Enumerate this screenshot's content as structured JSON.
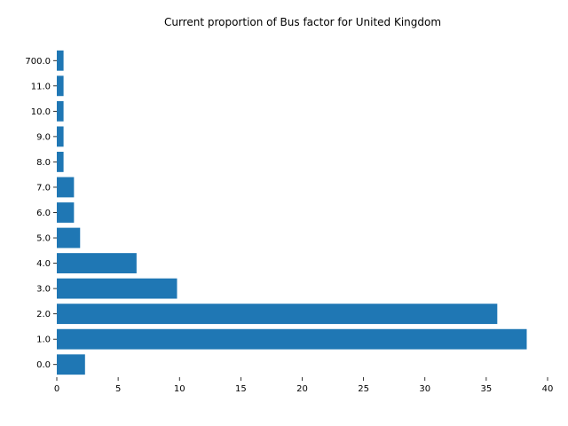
{
  "chart_data": {
    "type": "bar",
    "orientation": "horizontal",
    "title": "Current proportion of Bus factor for United Kingdom",
    "xlabel": "",
    "ylabel": "",
    "categories": [
      "0.0",
      "1.0",
      "2.0",
      "3.0",
      "4.0",
      "5.0",
      "6.0",
      "7.0",
      "8.0",
      "9.0",
      "10.0",
      "11.0",
      "700.0"
    ],
    "values": [
      2.3,
      38.3,
      35.9,
      9.8,
      6.5,
      1.9,
      1.4,
      1.4,
      0.55,
      0.55,
      0.55,
      0.55,
      0.55
    ],
    "xlim": [
      0,
      40
    ],
    "xticks": [
      "0",
      "5",
      "10",
      "15",
      "20",
      "25",
      "30",
      "35",
      "40"
    ],
    "grid": false,
    "colors": {
      "bar": "#1f77b4"
    }
  }
}
